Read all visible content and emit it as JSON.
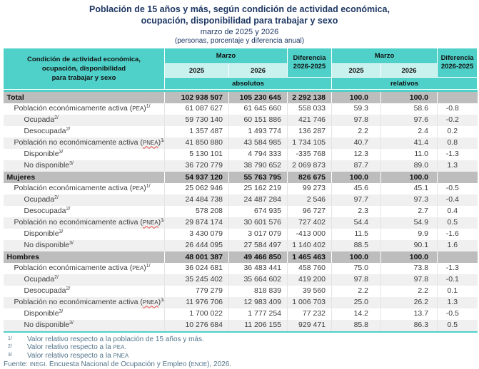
{
  "page": {
    "title_line1": "Población de 15 años y más, según condición de actividad económica,",
    "title_line2": "ocupación, disponibilidad para trabajar y sexo",
    "subtitle": "marzo de 2025 y 2026",
    "units_note": "(personas, porcentaje y diferencia anual)"
  },
  "colors": {
    "header_teal": "#4fd1c9",
    "year_teal_light": "#c9f1ee",
    "section_band_gray": "#bdbdbd",
    "row_alternate_gray": "#f0f0f0",
    "title_navy": "#1f3864",
    "footnote_blue_gray": "#53748a"
  },
  "table": {
    "stub_header_lines": [
      "Condición de actividad económica,",
      "ocupación, disponibilidad",
      "para trabajar y sexo"
    ],
    "month_label": "Marzo",
    "years": [
      "2025",
      "2026"
    ],
    "diff_label_line1": "Diferencia",
    "diff_label_line2": "2026-2025",
    "absolutos_label": "absolutos",
    "relativos_label": "relativos",
    "sections": [
      {
        "name": "Total",
        "totals": [
          "102 938 507",
          "105 230 645",
          "2 292 138",
          "100.0",
          "100.0",
          ""
        ],
        "rows": [
          {
            "indent": 1,
            "label_parts": [
              {
                "t": "Población económicamente activa ("
              },
              {
                "t": "PEA",
                "s": "abbr"
              },
              {
                "t": ")"
              },
              {
                "t": "1/",
                "s": "sup"
              }
            ],
            "values": [
              "61 087 627",
              "61 645 660",
              "558 033",
              "59.3",
              "58.6",
              "-0.8"
            ]
          },
          {
            "indent": 2,
            "label_parts": [
              {
                "t": "Ocupada"
              },
              {
                "t": "2/",
                "s": "sup"
              }
            ],
            "values": [
              "59 730 140",
              "60 151 886",
              "421 746",
              "97.8",
              "97.6",
              "-0.2"
            ]
          },
          {
            "indent": 2,
            "label_parts": [
              {
                "t": "Desocupada"
              },
              {
                "t": "2/",
                "s": "sup"
              }
            ],
            "values": [
              "1 357 487",
              "1 493 774",
              "136 287",
              "2.2",
              "2.4",
              "0.2"
            ]
          },
          {
            "indent": 1,
            "label_parts": [
              {
                "t": "Población no económicamente activa ("
              },
              {
                "t": "PNEA",
                "s": "abbr-err"
              },
              {
                "t": ")"
              },
              {
                "t": "1/",
                "s": "sup"
              }
            ],
            "values": [
              "41 850 880",
              "43 584 985",
              "1 734 105",
              "40.7",
              "41.4",
              "0.8"
            ]
          },
          {
            "indent": 2,
            "label_parts": [
              {
                "t": "Disponible"
              },
              {
                "t": "3/",
                "s": "sup"
              }
            ],
            "values": [
              "5 130 101",
              "4 794 333",
              "-335 768",
              "12.3",
              "11.0",
              "-1.3"
            ]
          },
          {
            "indent": 2,
            "label_parts": [
              {
                "t": "No disponible"
              },
              {
                "t": "3/",
                "s": "sup"
              }
            ],
            "values": [
              "36 720 779",
              "38 790 652",
              "2 069 873",
              "87.7",
              "89.0",
              "1.3"
            ]
          }
        ]
      },
      {
        "name": "Mujeres",
        "totals": [
          "54 937 120",
          "55 763 795",
          "826 675",
          "100.0",
          "100.0",
          ""
        ],
        "rows": [
          {
            "indent": 1,
            "label_parts": [
              {
                "t": "Población económicamente activa ("
              },
              {
                "t": "PEA",
                "s": "abbr"
              },
              {
                "t": ")"
              },
              {
                "t": "1/",
                "s": "sup"
              }
            ],
            "values": [
              "25 062 946",
              "25 162 219",
              "99 273",
              "45.6",
              "45.1",
              "-0.5"
            ]
          },
          {
            "indent": 2,
            "label_parts": [
              {
                "t": "Ocupada"
              },
              {
                "t": "2/",
                "s": "sup"
              }
            ],
            "values": [
              "24 484 738",
              "24 487 284",
              "2 546",
              "97.7",
              "97.3",
              "-0.4"
            ]
          },
          {
            "indent": 2,
            "label_parts": [
              {
                "t": "Desocupada"
              },
              {
                "t": "2/",
                "s": "sup"
              }
            ],
            "values": [
              "578 208",
              "674 935",
              "96 727",
              "2.3",
              "2.7",
              "0.4"
            ]
          },
          {
            "indent": 1,
            "label_parts": [
              {
                "t": "Población no económicamente activa ("
              },
              {
                "t": "PNEA",
                "s": "abbr-err"
              },
              {
                "t": ")"
              },
              {
                "t": "1/",
                "s": "sup"
              }
            ],
            "values": [
              "29 874 174",
              "30 601 576",
              "727 402",
              "54.4",
              "54.9",
              "0.5"
            ]
          },
          {
            "indent": 2,
            "label_parts": [
              {
                "t": "Disponible"
              },
              {
                "t": "3/",
                "s": "sup"
              }
            ],
            "values": [
              "3 430 079",
              "3 017 079",
              "-413 000",
              "11.5",
              "9.9",
              "-1.6"
            ]
          },
          {
            "indent": 2,
            "label_parts": [
              {
                "t": "No disponible"
              },
              {
                "t": "3/",
                "s": "sup"
              }
            ],
            "values": [
              "26 444 095",
              "27 584 497",
              "1 140 402",
              "88.5",
              "90.1",
              "1.6"
            ]
          }
        ]
      },
      {
        "name": "Hombres",
        "totals": [
          "48 001 387",
          "49 466 850",
          "1 465 463",
          "100.0",
          "100.0",
          ""
        ],
        "rows": [
          {
            "indent": 1,
            "label_parts": [
              {
                "t": "Población económicamente activa ("
              },
              {
                "t": "PEA",
                "s": "abbr"
              },
              {
                "t": ")"
              },
              {
                "t": "1/",
                "s": "sup"
              }
            ],
            "values": [
              "36 024 681",
              "36 483 441",
              "458 760",
              "75.0",
              "73.8",
              "-1.3"
            ]
          },
          {
            "indent": 2,
            "label_parts": [
              {
                "t": "Ocupada"
              },
              {
                "t": "2/",
                "s": "sup"
              }
            ],
            "values": [
              "35 245 402",
              "35 664 602",
              "419 200",
              "97.8",
              "97.8",
              "-0.1"
            ]
          },
          {
            "indent": 2,
            "label_parts": [
              {
                "t": "Desocupada"
              },
              {
                "t": "2/",
                "s": "sup"
              }
            ],
            "values": [
              "779 279",
              "818 839",
              "39 560",
              "2.2",
              "2.2",
              "0.1"
            ]
          },
          {
            "indent": 1,
            "label_parts": [
              {
                "t": "Población no económicamente activa ("
              },
              {
                "t": "PNEA",
                "s": "abbr-err"
              },
              {
                "t": ")"
              },
              {
                "t": "1/",
                "s": "sup"
              }
            ],
            "values": [
              "11 976 706",
              "12 983 409",
              "1 006 703",
              "25.0",
              "26.2",
              "1.3"
            ]
          },
          {
            "indent": 2,
            "label_parts": [
              {
                "t": "Disponible"
              },
              {
                "t": "3/",
                "s": "sup"
              }
            ],
            "values": [
              "1 700 022",
              "1 777 254",
              "77 232",
              "14.2",
              "13.7",
              "-0.5"
            ]
          },
          {
            "indent": 2,
            "label_parts": [
              {
                "t": "No disponible"
              },
              {
                "t": "3/",
                "s": "sup"
              }
            ],
            "values": [
              "10 276 684",
              "11 206 155",
              "929 471",
              "85.8",
              "86.3",
              "0.5"
            ]
          }
        ]
      }
    ]
  },
  "footnotes": [
    {
      "marker": "1/",
      "text_parts": [
        {
          "t": "Valor relativo respecto a la población de 15 años y más."
        }
      ]
    },
    {
      "marker": "2/",
      "text_parts": [
        {
          "t": "Valor relativo respecto a la "
        },
        {
          "t": "PEA",
          "s": "abbr"
        },
        {
          "t": "."
        }
      ]
    },
    {
      "marker": "3/",
      "text_parts": [
        {
          "t": "Valor relativo respecto a la "
        },
        {
          "t": "PNEA",
          "s": "abbr"
        }
      ]
    }
  ],
  "fuente_parts": [
    {
      "t": "Fuente: "
    },
    {
      "t": "INEGI",
      "s": "abbr"
    },
    {
      "t": ". Encuesta Nacional de Ocupación y Empleo ("
    },
    {
      "t": "ENOE",
      "s": "abbr"
    },
    {
      "t": "), 2026."
    }
  ]
}
